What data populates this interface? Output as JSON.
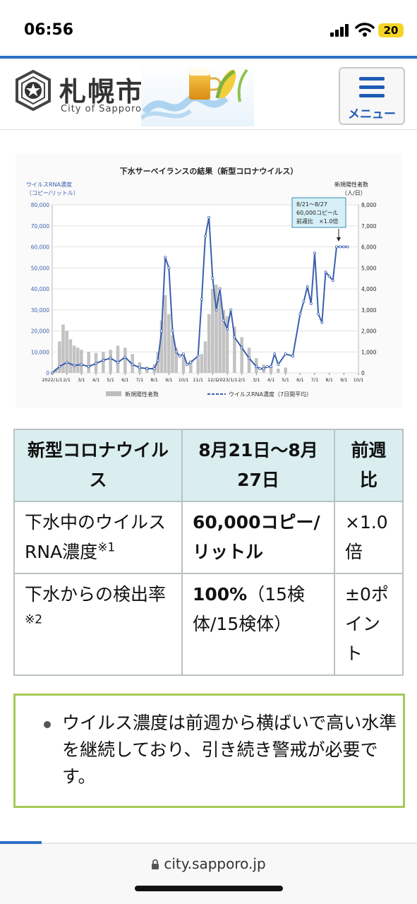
{
  "status": {
    "time": "06:56",
    "battery": "20"
  },
  "header": {
    "title": "札幌市",
    "subtitle": "City of Sapporo",
    "menu_label": "メニュー"
  },
  "chart": {
    "title": "下水サーベイランスの結果（新型コロナウイルス）",
    "left_axis_label": "ウイルスRNA濃度",
    "left_axis_unit": "（コピー/リットル）",
    "right_axis_label": "新規陽性者数",
    "right_axis_unit": "（人/日）",
    "annotation_lines": [
      "8/21～8/27",
      "60,000コピー/L",
      "前週比　×1.0倍"
    ],
    "legend_bar": "新規陽性者数",
    "legend_line": "ウイルスRNA濃度（7日間平均）"
  },
  "chart_data": {
    "type": "line",
    "title": "下水サーベイランスの結果（新型コロナウイルス）",
    "x_ticks": [
      "2022/1/1",
      "2/1",
      "3/1",
      "4/1",
      "5/1",
      "6/1",
      "7/1",
      "8/1",
      "9/1",
      "10/1",
      "11/1",
      "12/1",
      "2023/1/1",
      "2/1",
      "3/1",
      "4/1",
      "5/1",
      "6/1",
      "7/1",
      "8/1",
      "9/1",
      "10/1"
    ],
    "y_left_ticks": [
      "0",
      "10,000",
      "20,000",
      "30,000",
      "40,000",
      "50,000",
      "60,000",
      "70,000",
      "80,000"
    ],
    "y_right_ticks": [
      "0",
      "1,000",
      "2,000",
      "3,000",
      "4,000",
      "5,000",
      "6,000",
      "7,000",
      "8,000"
    ],
    "ylim_left": [
      0,
      80000
    ],
    "ylim_right": [
      0,
      8000
    ],
    "series": [
      {
        "name": "新規陽性者数",
        "kind": "bar",
        "x": [
          0.25,
          0.5,
          0.75,
          1,
          1.25,
          1.5,
          1.75,
          2,
          2.5,
          3,
          3.5,
          4,
          4.5,
          5,
          5.5,
          6,
          6.5,
          7,
          7.25,
          7.5,
          7.75,
          8,
          8.25,
          8.5,
          9,
          9.5,
          10,
          10.25,
          10.5,
          10.75,
          11,
          11.25,
          11.5,
          11.75,
          12,
          12.5,
          13,
          13.5,
          14,
          14.5,
          15,
          15.5,
          16
        ],
        "values": [
          200,
          1500,
          2300,
          2000,
          1600,
          1300,
          1200,
          1100,
          1000,
          950,
          1000,
          1100,
          1300,
          1200,
          900,
          500,
          300,
          400,
          1000,
          2500,
          3700,
          2800,
          1800,
          1200,
          800,
          600,
          700,
          900,
          1500,
          2800,
          4000,
          4200,
          3600,
          3000,
          2700,
          2200,
          1700,
          1200,
          700,
          400,
          300,
          200,
          250
        ]
      },
      {
        "name": "ウイルスRNA濃度（7日間平均）",
        "kind": "line",
        "x": [
          0,
          0.5,
          1,
          1.5,
          2,
          2.5,
          3,
          3.5,
          4,
          4.5,
          5,
          5.5,
          6,
          6.5,
          7,
          7.25,
          7.5,
          7.75,
          8,
          8.25,
          8.5,
          8.75,
          9,
          9.25,
          9.5,
          10,
          10.25,
          10.5,
          10.75,
          11,
          11.25,
          11.5,
          11.75,
          12,
          12.25,
          12.5,
          13,
          13.5,
          14,
          14.25,
          14.5,
          14.75,
          15,
          15.25,
          15.5,
          16,
          16.5,
          17,
          17.25,
          17.5,
          17.75,
          18,
          18.25,
          18.5,
          18.75,
          19,
          19.25,
          19.5,
          19.75,
          20,
          20.25
        ],
        "values": [
          0,
          3000,
          5000,
          3500,
          4000,
          3000,
          4500,
          6000,
          7000,
          5000,
          7500,
          4000,
          2500,
          2000,
          2000,
          6000,
          20000,
          55000,
          50000,
          20000,
          10000,
          8000,
          9000,
          4000,
          5000,
          8000,
          35000,
          65000,
          74000,
          45000,
          30000,
          40000,
          25000,
          21000,
          30000,
          17000,
          12000,
          7000,
          3000,
          2000,
          2000,
          3000,
          3000,
          9000,
          4000,
          9000,
          8000,
          28000,
          34000,
          41000,
          33000,
          57000,
          28000,
          24000,
          48000,
          46000,
          44000,
          60000,
          60000,
          60000,
          60000
        ]
      }
    ]
  },
  "table": {
    "headers": [
      "新型コロナウイルス",
      "8月21日～8月27日",
      "前週比"
    ],
    "rows": [
      {
        "label": "下水中のウイルスRNA濃度",
        "note": "※1",
        "value": "60,000コピー/リットル",
        "value_rest": "",
        "change": "×1.0倍"
      },
      {
        "label": "下水からの検出率",
        "note": "※2",
        "value": "100%",
        "value_rest": "（15検体/15検体）",
        "change": "±0ポイント"
      }
    ]
  },
  "notice": {
    "text": "ウイルス濃度は前週から横ばいで高い水準を継続しており、引き続き警戒が必要です。"
  },
  "browser": {
    "url": "city.sapporo.jp"
  }
}
